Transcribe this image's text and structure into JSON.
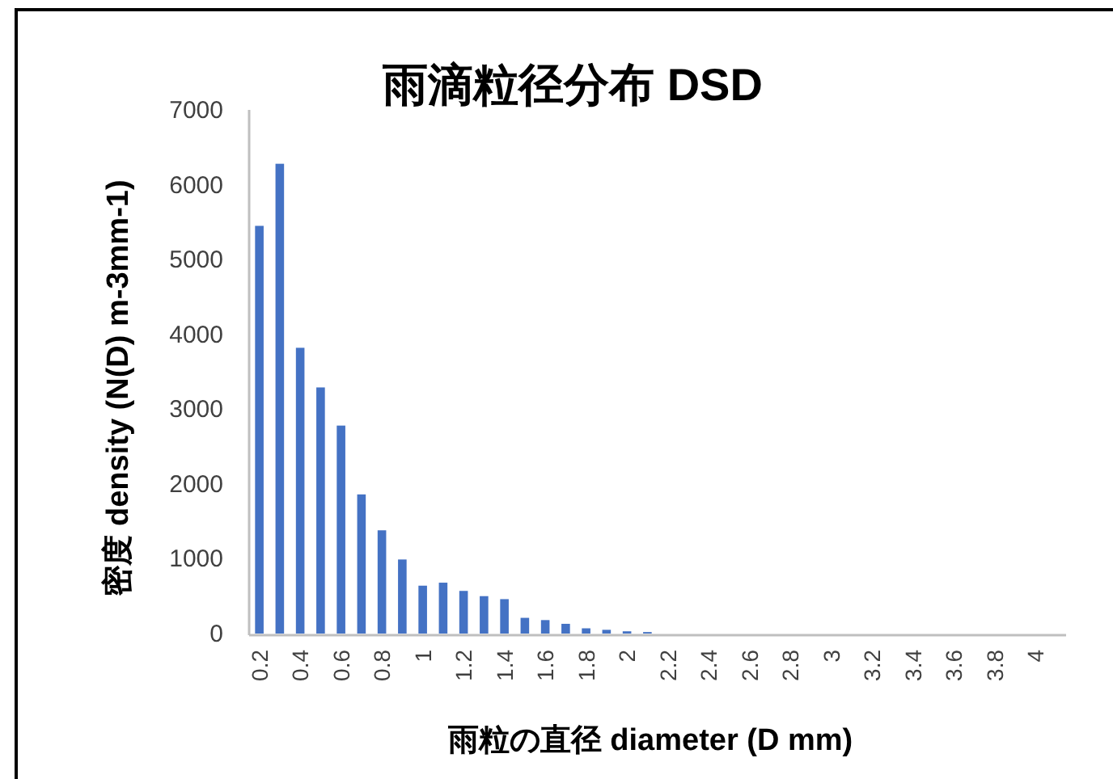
{
  "chart_data": {
    "type": "bar",
    "title": "雨滴粒径分布 DSD",
    "xlabel": "雨粒の直径 diameter (D mm)",
    "ylabel": "密度 density (N(D) m-3mm-1)",
    "categories": [
      "0.2",
      null,
      "0.4",
      null,
      "0.6",
      null,
      "0.8",
      null,
      "1",
      null,
      "1.2",
      null,
      "1.4",
      null,
      "1.6",
      null,
      "1.8",
      null,
      "2",
      null,
      "2.2",
      null,
      "2.4",
      null,
      "2.6",
      null,
      "2.8",
      null,
      "3",
      null,
      "3.2",
      null,
      "3.4",
      null,
      "3.6",
      null,
      "3.8",
      null,
      "4",
      null
    ],
    "values": [
      5450,
      6280,
      3820,
      3290,
      2780,
      1860,
      1380,
      990,
      640,
      680,
      570,
      500,
      460,
      210,
      180,
      130,
      70,
      50,
      30,
      20,
      0,
      0,
      0,
      0,
      0,
      0,
      0,
      0,
      0,
      0,
      0,
      0,
      0,
      0,
      0,
      0,
      0,
      0,
      0,
      0
    ],
    "color": "#4472c4",
    "ylim": [
      0,
      7000
    ],
    "yticks": [
      0,
      1000,
      2000,
      3000,
      4000,
      5000,
      6000,
      7000
    ]
  }
}
